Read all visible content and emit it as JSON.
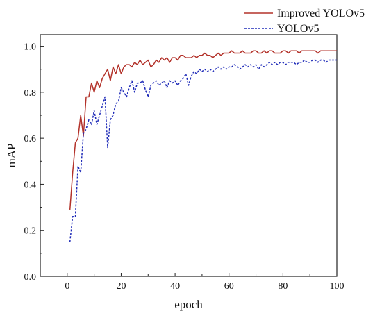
{
  "chart_data": {
    "type": "line",
    "title": "",
    "xlabel": "epoch",
    "ylabel": "mAP",
    "xlim": [
      -10,
      100
    ],
    "ylim": [
      0.0,
      1.05
    ],
    "xticks": [
      "0",
      "20",
      "40",
      "60",
      "80",
      "100"
    ],
    "xtick_values": [
      0,
      20,
      40,
      60,
      80,
      100
    ],
    "yticks": [
      "0.0",
      "0.2",
      "0.4",
      "0.6",
      "0.8",
      "1.0"
    ],
    "ytick_values": [
      0.0,
      0.2,
      0.4,
      0.6,
      0.8,
      1.0
    ],
    "grid": false,
    "legend_position": "top-right",
    "series": [
      {
        "name": "Improved YOLOv5",
        "style": "solid",
        "color": "#b3322a",
        "x": [
          1,
          2,
          3,
          4,
          5,
          6,
          7,
          8,
          9,
          10,
          11,
          12,
          13,
          14,
          15,
          16,
          17,
          18,
          19,
          20,
          21,
          22,
          23,
          24,
          25,
          26,
          27,
          28,
          29,
          30,
          31,
          32,
          33,
          34,
          35,
          36,
          37,
          38,
          39,
          40,
          41,
          42,
          43,
          44,
          45,
          46,
          47,
          48,
          49,
          50,
          51,
          52,
          53,
          54,
          55,
          56,
          57,
          58,
          59,
          60,
          61,
          62,
          63,
          64,
          65,
          66,
          67,
          68,
          69,
          70,
          71,
          72,
          73,
          74,
          75,
          76,
          77,
          78,
          79,
          80,
          81,
          82,
          83,
          84,
          85,
          86,
          87,
          88,
          89,
          90,
          91,
          92,
          93,
          94,
          95,
          96,
          97,
          98,
          99,
          100
        ],
        "values": [
          0.29,
          0.45,
          0.58,
          0.6,
          0.7,
          0.61,
          0.78,
          0.78,
          0.84,
          0.8,
          0.85,
          0.82,
          0.86,
          0.88,
          0.9,
          0.85,
          0.91,
          0.88,
          0.92,
          0.88,
          0.91,
          0.92,
          0.92,
          0.91,
          0.93,
          0.92,
          0.94,
          0.92,
          0.93,
          0.94,
          0.91,
          0.92,
          0.94,
          0.93,
          0.95,
          0.94,
          0.95,
          0.93,
          0.95,
          0.95,
          0.94,
          0.96,
          0.96,
          0.95,
          0.95,
          0.95,
          0.96,
          0.95,
          0.96,
          0.96,
          0.97,
          0.96,
          0.96,
          0.95,
          0.96,
          0.97,
          0.96,
          0.97,
          0.97,
          0.97,
          0.98,
          0.97,
          0.97,
          0.97,
          0.98,
          0.97,
          0.97,
          0.97,
          0.98,
          0.98,
          0.97,
          0.97,
          0.98,
          0.97,
          0.98,
          0.98,
          0.97,
          0.97,
          0.97,
          0.98,
          0.98,
          0.97,
          0.98,
          0.98,
          0.98,
          0.97,
          0.98,
          0.98,
          0.98,
          0.98,
          0.98,
          0.98,
          0.97,
          0.98,
          0.98,
          0.98,
          0.98,
          0.98,
          0.98,
          0.98
        ]
      },
      {
        "name": "YOLOv5",
        "style": "dashed",
        "color": "#1f2bb8",
        "x": [
          1,
          2,
          3,
          4,
          5,
          6,
          7,
          8,
          9,
          10,
          11,
          12,
          13,
          14,
          15,
          16,
          17,
          18,
          19,
          20,
          21,
          22,
          23,
          24,
          25,
          26,
          27,
          28,
          29,
          30,
          31,
          32,
          33,
          34,
          35,
          36,
          37,
          38,
          39,
          40,
          41,
          42,
          43,
          44,
          45,
          46,
          47,
          48,
          49,
          50,
          51,
          52,
          53,
          54,
          55,
          56,
          57,
          58,
          59,
          60,
          61,
          62,
          63,
          64,
          65,
          66,
          67,
          68,
          69,
          70,
          71,
          72,
          73,
          74,
          75,
          76,
          77,
          78,
          79,
          80,
          81,
          82,
          83,
          84,
          85,
          86,
          87,
          88,
          89,
          90,
          91,
          92,
          93,
          94,
          95,
          96,
          97,
          98,
          99,
          100
        ],
        "values": [
          0.15,
          0.26,
          0.26,
          0.48,
          0.45,
          0.62,
          0.64,
          0.68,
          0.66,
          0.72,
          0.66,
          0.7,
          0.74,
          0.78,
          0.56,
          0.68,
          0.7,
          0.75,
          0.76,
          0.82,
          0.8,
          0.78,
          0.82,
          0.85,
          0.8,
          0.84,
          0.84,
          0.85,
          0.81,
          0.78,
          0.83,
          0.84,
          0.85,
          0.83,
          0.84,
          0.85,
          0.82,
          0.85,
          0.84,
          0.85,
          0.83,
          0.85,
          0.86,
          0.88,
          0.83,
          0.87,
          0.89,
          0.88,
          0.9,
          0.89,
          0.9,
          0.89,
          0.9,
          0.89,
          0.9,
          0.91,
          0.9,
          0.91,
          0.9,
          0.91,
          0.91,
          0.92,
          0.91,
          0.9,
          0.91,
          0.92,
          0.91,
          0.92,
          0.91,
          0.92,
          0.9,
          0.92,
          0.91,
          0.92,
          0.93,
          0.92,
          0.93,
          0.92,
          0.93,
          0.93,
          0.92,
          0.93,
          0.93,
          0.93,
          0.92,
          0.93,
          0.93,
          0.94,
          0.93,
          0.93,
          0.94,
          0.94,
          0.93,
          0.94,
          0.94,
          0.93,
          0.94,
          0.94,
          0.94,
          0.94
        ]
      }
    ]
  }
}
